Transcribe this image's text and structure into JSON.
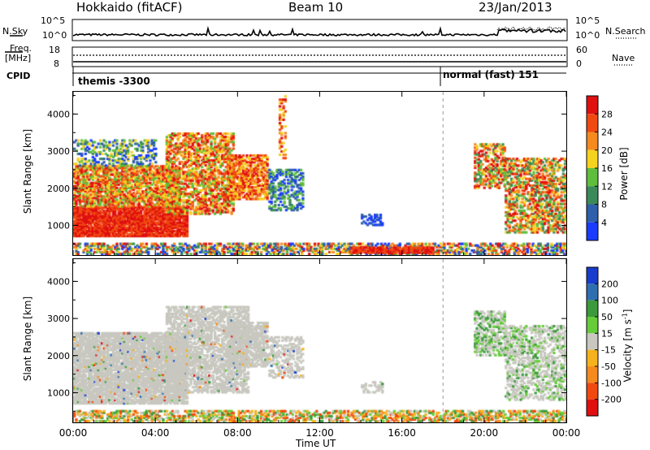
{
  "header": {
    "station": "Hokkaido (fitACF)",
    "beam": "Beam 10",
    "date": "23/Jan/2013"
  },
  "summary": {
    "nsky_label": "N.Sky",
    "nsky_ticks": [
      "10^5",
      "10^0"
    ],
    "nsearch_label": "N.Search",
    "freq_label_1": "Freq.",
    "freq_label_2": "[MHz]",
    "freq_ticks": [
      "18",
      "8"
    ],
    "nave_label": "Nave",
    "nave_ticks": [
      "60",
      "0"
    ],
    "cpid_label": "CPID",
    "cpid_1": "themis -3300",
    "cpid_2": "normal (fast) 151"
  },
  "colors": {
    "power": [
      "#1a3cff",
      "#2f5faa",
      "#3c8a5a",
      "#5fbf3c",
      "#f5d21e",
      "#f58a1e",
      "#f04a12",
      "#e01010"
    ],
    "velocity": [
      "#e01010",
      "#f04a12",
      "#f58a1e",
      "#f5b21e",
      "#c8c8c0",
      "#66cc3a",
      "#3c9a3c",
      "#2f6fb0",
      "#1a3ccc"
    ],
    "velocity_bg": "#c8c8c0"
  },
  "chart_data": [
    {
      "type": "heatmap",
      "title": "",
      "xlabel": "",
      "ylabel": "Slant Range [km]",
      "x_ticks": [
        "00:00",
        "04:00",
        "08:00",
        "12:00",
        "16:00",
        "20:00",
        "00:00"
      ],
      "y_ticks": [
        "1000",
        "2000",
        "3000",
        "4000"
      ],
      "ylim": [
        200,
        4600
      ],
      "colorbar_label": "Power [dB]",
      "colorbar_ticks": [
        "4",
        "8",
        "12",
        "16",
        "20",
        "24",
        "28"
      ],
      "clim": [
        0,
        32
      ],
      "grid": false
    },
    {
      "type": "heatmap",
      "title": "",
      "xlabel": "Time UT",
      "ylabel": "Slant Range [km]",
      "x_ticks": [
        "00:00",
        "04:00",
        "08:00",
        "12:00",
        "16:00",
        "20:00",
        "00:00"
      ],
      "y_ticks": [
        "1000",
        "2000",
        "3000",
        "4000"
      ],
      "ylim": [
        200,
        4600
      ],
      "colorbar_label": "Velocity [m s",
      "colorbar_label_sup": "-1",
      "colorbar_ticks": [
        "200",
        "100",
        "50",
        "15",
        "-15",
        "-50",
        "-100",
        "-200"
      ],
      "grid": false
    }
  ]
}
